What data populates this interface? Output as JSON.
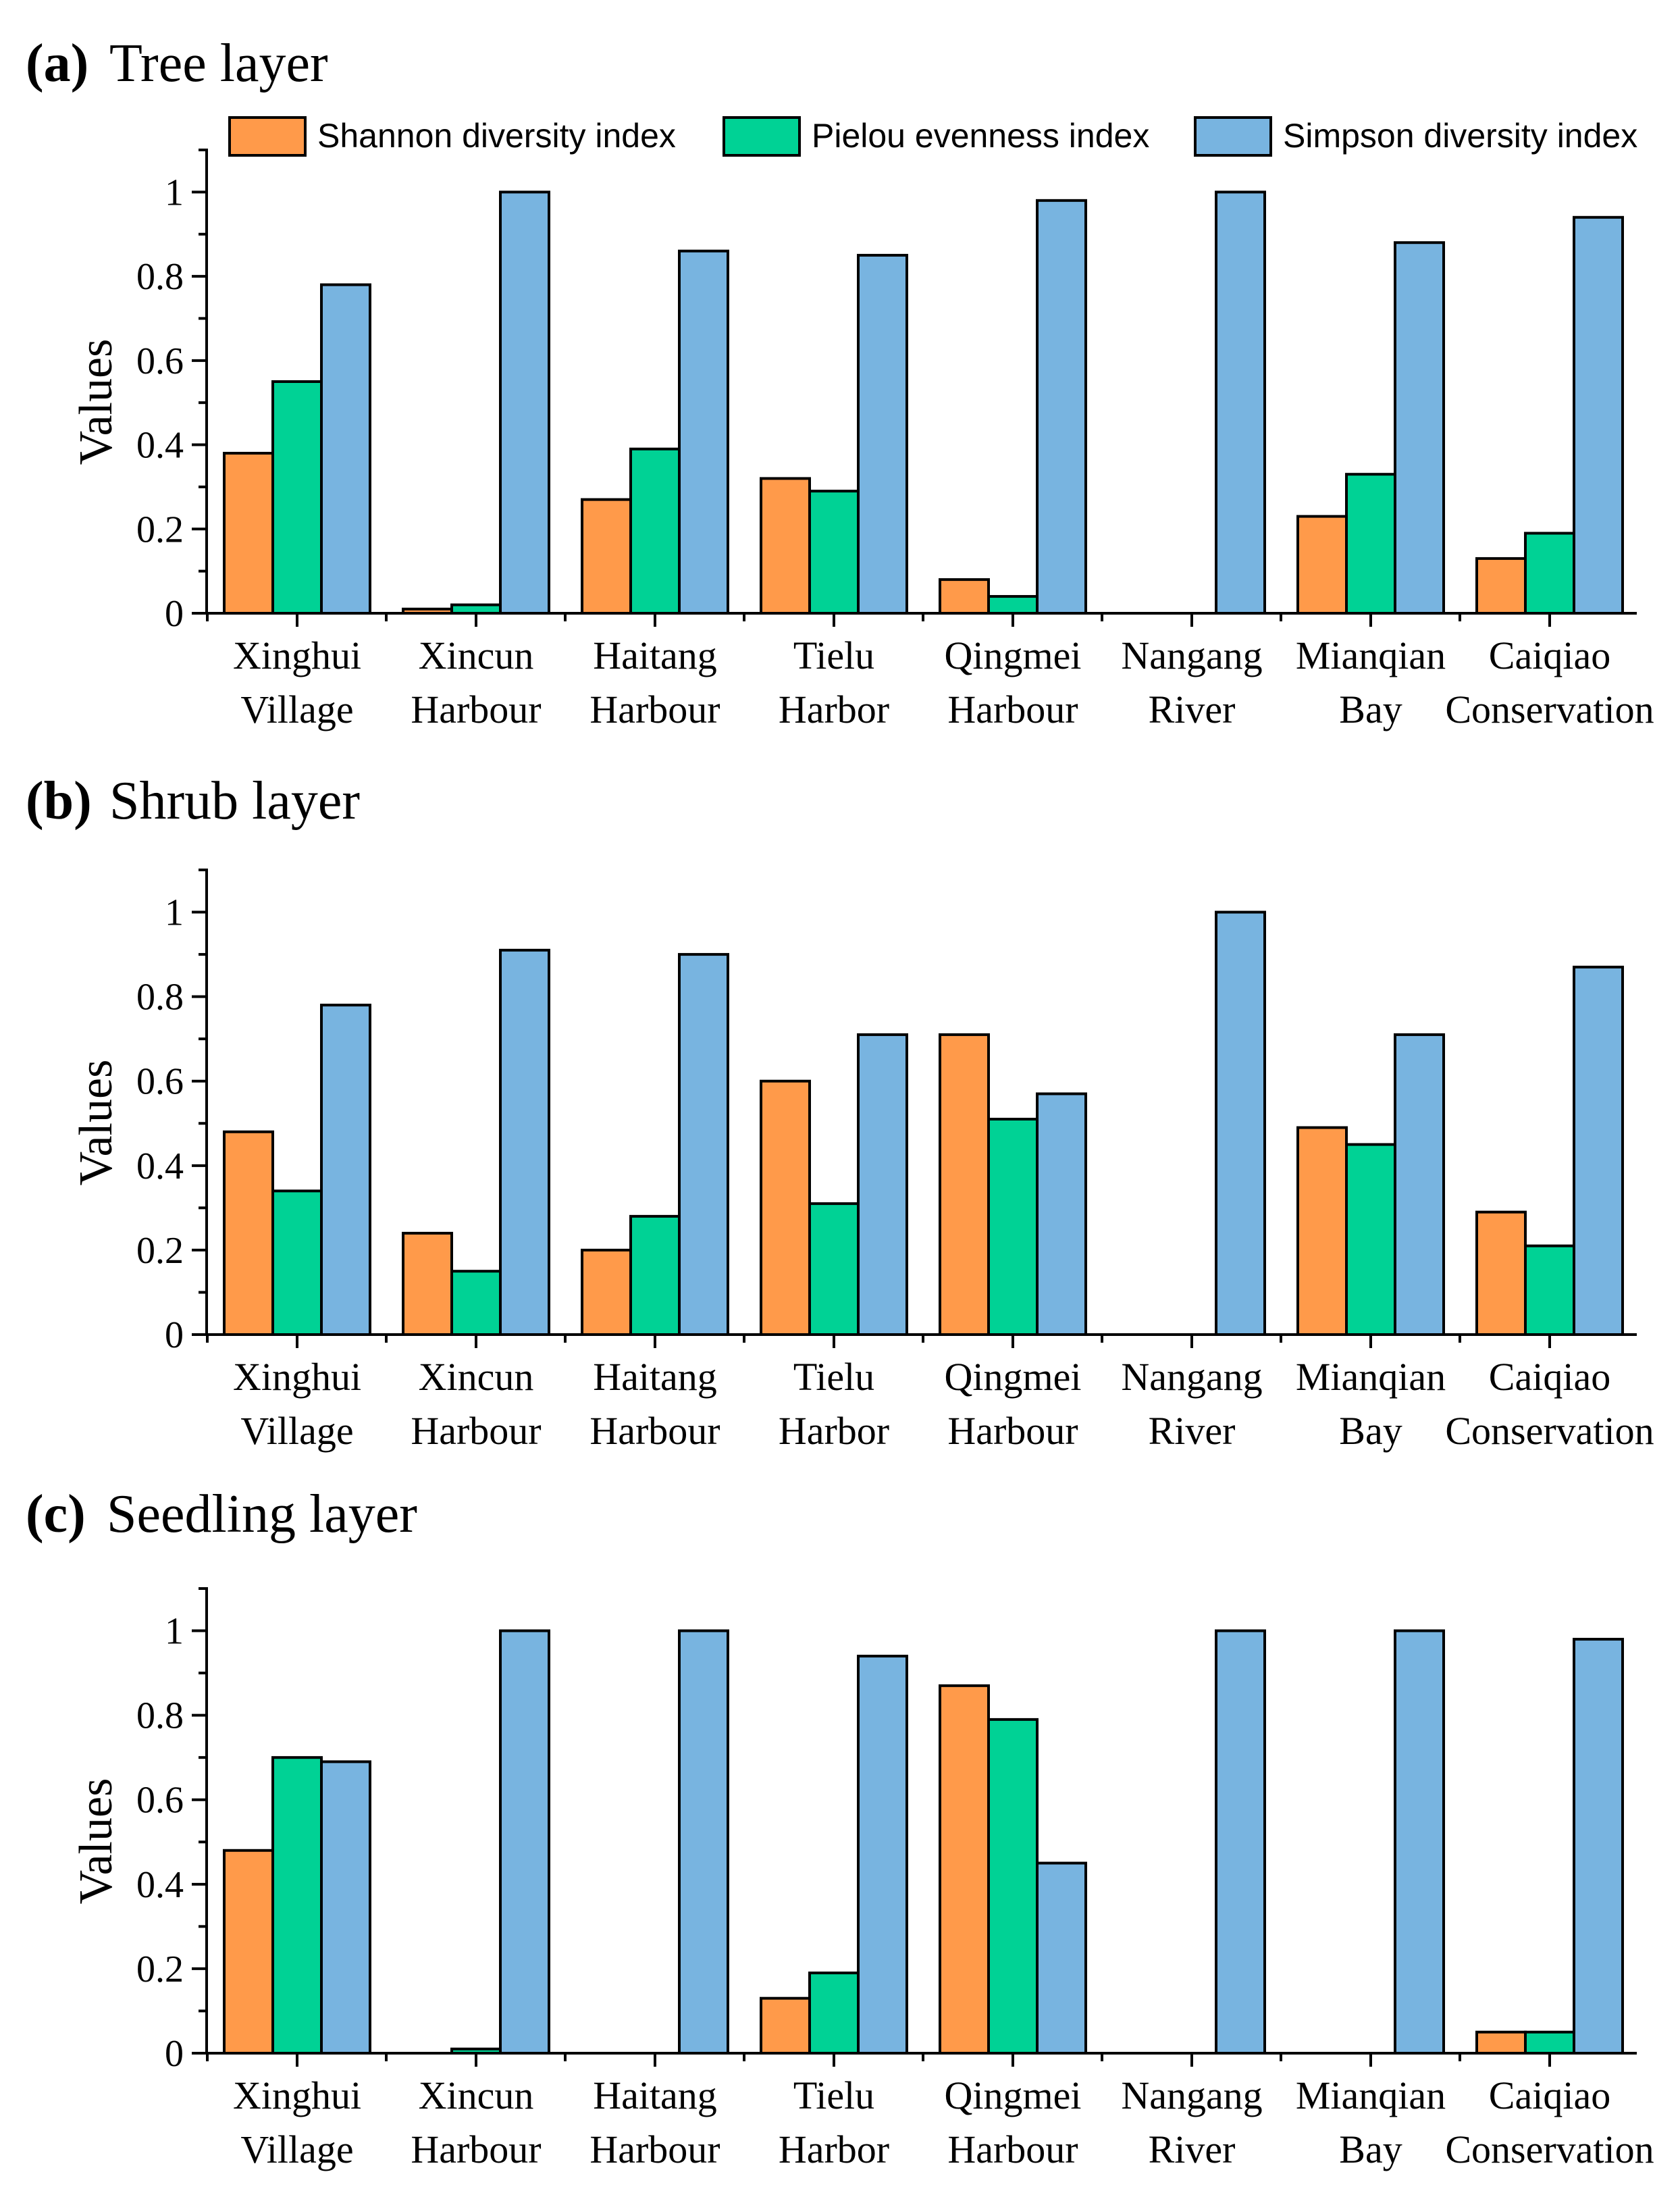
{
  "legend": [
    {
      "name": "Shannon diversity index",
      "color": "#FF9A4A"
    },
    {
      "name": "Pielou evenness index",
      "color": "#00D295"
    },
    {
      "name": "Simpson diversity index",
      "color": "#78B4E0"
    }
  ],
  "chart_data": [
    {
      "type": "bar",
      "panel_tag": "(a)",
      "title": "Tree layer",
      "ylabel": "Values",
      "ylim": [
        0,
        1.1
      ],
      "yticks": [
        "0",
        "0.2",
        "0.4",
        "0.6",
        "0.8",
        "1"
      ],
      "categories": [
        [
          "Xinghui",
          "Village"
        ],
        [
          "Xincun",
          "Harbour"
        ],
        [
          "Haitang",
          "Harbour"
        ],
        [
          "Tielu",
          "Harbor"
        ],
        [
          "Qingmei",
          "Harbour"
        ],
        [
          "Nangang",
          "River"
        ],
        [
          "Mianqian",
          "Bay"
        ],
        [
          "Caiqiao",
          "Conservation"
        ]
      ],
      "series": [
        {
          "name": "Shannon diversity index",
          "values": [
            0.38,
            0.01,
            0.27,
            0.32,
            0.08,
            0,
            0.23,
            0.13
          ]
        },
        {
          "name": "Pielou evenness index",
          "values": [
            0.55,
            0.02,
            0.39,
            0.29,
            0.04,
            0,
            0.33,
            0.19
          ]
        },
        {
          "name": "Simpson diversity index",
          "values": [
            0.78,
            1.0,
            0.86,
            0.85,
            0.98,
            1.0,
            0.88,
            0.94
          ]
        }
      ]
    },
    {
      "type": "bar",
      "panel_tag": "(b)",
      "title": "Shrub layer",
      "ylabel": "Values",
      "ylim": [
        0,
        1.1
      ],
      "yticks": [
        "0",
        "0.2",
        "0.4",
        "0.6",
        "0.8",
        "1"
      ],
      "categories": [
        [
          "Xinghui",
          "Village"
        ],
        [
          "Xincun",
          "Harbour"
        ],
        [
          "Haitang",
          "Harbour"
        ],
        [
          "Tielu",
          "Harbor"
        ],
        [
          "Qingmei",
          "Harbour"
        ],
        [
          "Nangang",
          "River"
        ],
        [
          "Mianqian",
          "Bay"
        ],
        [
          "Caiqiao",
          "Conservation"
        ]
      ],
      "series": [
        {
          "name": "Shannon diversity index",
          "values": [
            0.48,
            0.24,
            0.2,
            0.6,
            0.71,
            0,
            0.49,
            0.29
          ]
        },
        {
          "name": "Pielou evenness index",
          "values": [
            0.34,
            0.15,
            0.28,
            0.31,
            0.51,
            0,
            0.45,
            0.21
          ]
        },
        {
          "name": "Simpson diversity index",
          "values": [
            0.78,
            0.91,
            0.9,
            0.71,
            0.57,
            1.0,
            0.71,
            0.87
          ]
        }
      ]
    },
    {
      "type": "bar",
      "panel_tag": "(c)",
      "title": "Seedling layer",
      "ylabel": "Values",
      "ylim": [
        0,
        1.1
      ],
      "yticks": [
        "0",
        "0.2",
        "0.4",
        "0.6",
        "0.8",
        "1"
      ],
      "categories": [
        [
          "Xinghui",
          "Village"
        ],
        [
          "Xincun",
          "Harbour"
        ],
        [
          "Haitang",
          "Harbour"
        ],
        [
          "Tielu",
          "Harbor"
        ],
        [
          "Qingmei",
          "Harbour"
        ],
        [
          "Nangang",
          "River"
        ],
        [
          "Mianqian",
          "Bay"
        ],
        [
          "Caiqiao",
          "Conservation"
        ]
      ],
      "series": [
        {
          "name": "Shannon diversity index",
          "values": [
            0.48,
            0,
            0,
            0.13,
            0.87,
            0,
            0,
            0.05
          ]
        },
        {
          "name": "Pielou evenness index",
          "values": [
            0.7,
            0.01,
            0,
            0.19,
            0.79,
            0,
            0,
            0.05
          ]
        },
        {
          "name": "Simpson diversity index",
          "values": [
            0.69,
            1.0,
            1.0,
            0.94,
            0.45,
            1.0,
            1.0,
            0.98
          ]
        }
      ]
    }
  ]
}
